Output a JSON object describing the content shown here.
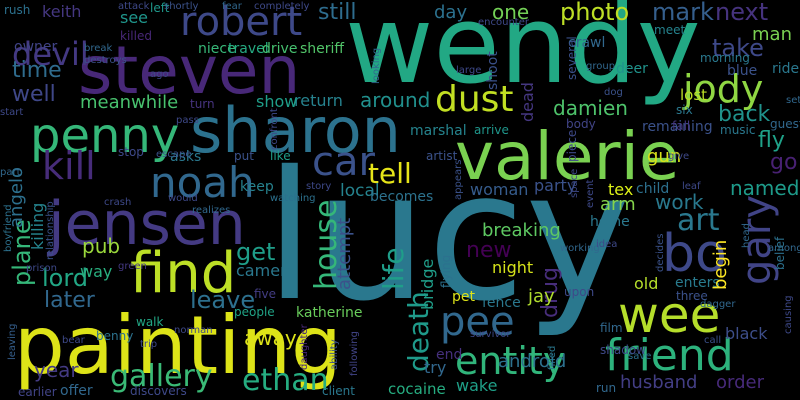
{
  "words": [
    {
      "text": "lucy",
      "color": "#2a788e"
    },
    {
      "text": "wendy",
      "color": "#22a884"
    },
    {
      "text": "painting",
      "color": "#dde318"
    },
    {
      "text": "steven",
      "color": "#482878"
    },
    {
      "text": "sharon",
      "color": "#2c728e"
    },
    {
      "text": "valerie",
      "color": "#7ad151"
    },
    {
      "text": "jensen",
      "color": "#443a83"
    },
    {
      "text": "penny",
      "color": "#35b779"
    },
    {
      "text": "find",
      "color": "#bddf26"
    },
    {
      "text": "friend",
      "color": "#2db27d"
    },
    {
      "text": "bo",
      "color": "#3e4989"
    },
    {
      "text": "wee",
      "color": "#b5de2b"
    },
    {
      "text": "gary",
      "color": "#414487"
    },
    {
      "text": "noah",
      "color": "#31688e"
    },
    {
      "text": "car",
      "color": "#3b528b"
    },
    {
      "text": "robert",
      "color": "#3e4989"
    },
    {
      "text": "kill",
      "color": "#472c7a"
    },
    {
      "text": "pee",
      "color": "#31688e"
    },
    {
      "text": "entity",
      "color": "#31b57b"
    },
    {
      "text": "dust",
      "color": "#c2df23"
    },
    {
      "text": "jody",
      "color": "#90d743"
    },
    {
      "text": "devil",
      "color": "#443983"
    },
    {
      "text": "gallery",
      "color": "#3aba76"
    },
    {
      "text": "ethan",
      "color": "#26ad81"
    },
    {
      "text": "house",
      "color": "#35b779"
    },
    {
      "text": "life",
      "color": "#1f9e89"
    },
    {
      "text": "death",
      "color": "#1f9a8a"
    },
    {
      "text": "art",
      "color": "#2a788e"
    },
    {
      "text": "tell",
      "color": "#e5e419"
    },
    {
      "text": "get",
      "color": "#1f9e89"
    },
    {
      "text": "lord",
      "color": "#22a785"
    },
    {
      "text": "later",
      "color": "#31688e"
    },
    {
      "text": "leave",
      "color": "#2d708e"
    },
    {
      "text": "time",
      "color": "#2f6c8e"
    },
    {
      "text": "well",
      "color": "#3f4788"
    },
    {
      "text": "plane",
      "color": "#35b779"
    },
    {
      "text": "take",
      "color": "#3e4989"
    },
    {
      "text": "mark",
      "color": "#355f8d"
    },
    {
      "text": "next",
      "color": "#46337e"
    },
    {
      "text": "fly",
      "color": "#1fa188"
    },
    {
      "text": "go",
      "color": "#482173"
    },
    {
      "text": "back",
      "color": "#20928c"
    },
    {
      "text": "named",
      "color": "#1e9b8a"
    },
    {
      "text": "work",
      "color": "#29798e"
    },
    {
      "text": "new",
      "color": "#440154"
    },
    {
      "text": "drug",
      "color": "#472d7b"
    },
    {
      "text": "photo",
      "color": "#bddf26"
    },
    {
      "text": "day",
      "color": "#2c718e"
    },
    {
      "text": "one",
      "color": "#73d056"
    },
    {
      "text": "still",
      "color": "#2e6d8e"
    },
    {
      "text": "around",
      "color": "#21908d"
    },
    {
      "text": "damien",
      "color": "#4ec36b"
    },
    {
      "text": "meanwhile",
      "color": "#48c16e"
    },
    {
      "text": "attempt",
      "color": "#3b528b"
    },
    {
      "text": "local",
      "color": "#25838e"
    },
    {
      "text": "return",
      "color": "#26828e"
    },
    {
      "text": "show",
      "color": "#1f9e89"
    },
    {
      "text": "breaking",
      "color": "#5ec962"
    },
    {
      "text": "night",
      "color": "#d5e21a"
    },
    {
      "text": "jay",
      "color": "#b0dd2f"
    },
    {
      "text": "android",
      "color": "#2c718e"
    },
    {
      "text": "husband",
      "color": "#433e85"
    },
    {
      "text": "order",
      "color": "#472a7a"
    },
    {
      "text": "black",
      "color": "#3d4e8a"
    },
    {
      "text": "wake",
      "color": "#1fa088"
    },
    {
      "text": "cocaine",
      "color": "#26ad81"
    },
    {
      "text": "try",
      "color": "#31688e"
    },
    {
      "text": "end",
      "color": "#46307e"
    },
    {
      "text": "pub",
      "color": "#9bd93c"
    },
    {
      "text": "angelo",
      "color": "#2d708e"
    },
    {
      "text": "killing",
      "color": "#25848e"
    },
    {
      "text": "way",
      "color": "#29af7f"
    },
    {
      "text": "camera",
      "color": "#2a788e"
    },
    {
      "text": "away",
      "color": "#dde318"
    },
    {
      "text": "katherine",
      "color": "#69cd5b"
    },
    {
      "text": "people",
      "color": "#20a386"
    },
    {
      "text": "year",
      "color": "#443a83"
    },
    {
      "text": "keith",
      "color": "#453781"
    },
    {
      "text": "see",
      "color": "#1f968b"
    },
    {
      "text": "owner",
      "color": "#414487"
    },
    {
      "text": "man",
      "color": "#7ad151"
    },
    {
      "text": "blue",
      "color": "#3b528b"
    },
    {
      "text": "ride",
      "color": "#2a788e"
    },
    {
      "text": "lost",
      "color": "#bddf26"
    },
    {
      "text": "gun",
      "color": "#d8e219"
    },
    {
      "text": "child",
      "color": "#2d708e"
    },
    {
      "text": "tex",
      "color": "#ddf218"
    },
    {
      "text": "woman",
      "color": "#365c8d"
    },
    {
      "text": "party",
      "color": "#3b528b"
    },
    {
      "text": "arm",
      "color": "#84d44b"
    },
    {
      "text": "home",
      "color": "#2a788e"
    },
    {
      "text": "pet",
      "color": "#dde318"
    },
    {
      "text": "fence",
      "color": "#2a788e"
    },
    {
      "text": "old",
      "color": "#b5de2b"
    },
    {
      "text": "enters",
      "color": "#297b8e"
    },
    {
      "text": "begin",
      "color": "#fde725"
    },
    {
      "text": "remaining",
      "color": "#3b528b"
    },
    {
      "text": "bridge",
      "color": "#1f9e89"
    },
    {
      "text": "dead",
      "color": "#453781"
    },
    {
      "text": "marshal",
      "color": "#25848e"
    },
    {
      "text": "arrive",
      "color": "#1f968b"
    },
    {
      "text": "shoot",
      "color": "#3b528b"
    },
    {
      "text": "keep",
      "color": "#26828e"
    },
    {
      "text": "becomes",
      "color": "#2c728e"
    },
    {
      "text": "asks",
      "color": "#2a788e"
    },
    {
      "text": "stop",
      "color": "#3e4989"
    },
    {
      "text": "five",
      "color": "#433d84"
    },
    {
      "text": "walk",
      "color": "#22a785"
    },
    {
      "text": "benny",
      "color": "#2c728e"
    },
    {
      "text": "left",
      "color": "#1f988b"
    },
    {
      "text": "killed",
      "color": "#482878"
    },
    {
      "text": "niece",
      "color": "#37b878"
    },
    {
      "text": "travel",
      "color": "#25ab82"
    },
    {
      "text": "drive",
      "color": "#46c06f"
    },
    {
      "text": "sheriff",
      "color": "#52c569"
    },
    {
      "text": "turn",
      "color": "#46337e"
    },
    {
      "text": "deer",
      "color": "#20938c"
    },
    {
      "text": "morning",
      "color": "#2a788e"
    },
    {
      "text": "meet",
      "color": "#25838e"
    },
    {
      "text": "crawl",
      "color": "#31688e"
    },
    {
      "text": "several",
      "color": "#3b528b"
    },
    {
      "text": "six",
      "color": "#2a788e"
    },
    {
      "text": "fall",
      "color": "#453781"
    },
    {
      "text": "music",
      "color": "#2a788e"
    },
    {
      "text": "guest",
      "color": "#31688e"
    },
    {
      "text": "body",
      "color": "#414487"
    },
    {
      "text": "artist",
      "color": "#3b528b"
    },
    {
      "text": "piece",
      "color": "#3e4989"
    },
    {
      "text": "like",
      "color": "#1f9e89"
    },
    {
      "text": "put",
      "color": "#3b528b"
    },
    {
      "text": "story",
      "color": "#3e4989"
    },
    {
      "text": "watching",
      "color": "#2c718e"
    },
    {
      "text": "would",
      "color": "#3e4989"
    },
    {
      "text": "realizes",
      "color": "#31688e"
    },
    {
      "text": "crash",
      "color": "#3e4989"
    },
    {
      "text": "green",
      "color": "#443983"
    },
    {
      "text": "prison",
      "color": "#3e4989"
    },
    {
      "text": "leaving",
      "color": "#355f8d"
    },
    {
      "text": "earlier",
      "color": "#414487"
    },
    {
      "text": "offer",
      "color": "#31688e"
    },
    {
      "text": "discovers",
      "color": "#3e4989"
    },
    {
      "text": "client",
      "color": "#2a788e"
    },
    {
      "text": "trip",
      "color": "#3e4989"
    },
    {
      "text": "daughter",
      "color": "#482878"
    },
    {
      "text": "ability",
      "color": "#3b528b"
    },
    {
      "text": "following",
      "color": "#414487"
    },
    {
      "text": "survivor",
      "color": "#3e4989"
    },
    {
      "text": "filled",
      "color": "#2a788e"
    },
    {
      "text": "shadow",
      "color": "#3e4989"
    },
    {
      "text": "save",
      "color": "#2c718e"
    },
    {
      "text": "run",
      "color": "#31688e"
    },
    {
      "text": "film",
      "color": "#31688e"
    },
    {
      "text": "upon",
      "color": "#3e4989"
    },
    {
      "text": "three",
      "color": "#3b528b"
    },
    {
      "text": "flying",
      "color": "#2c718e"
    },
    {
      "text": "working",
      "color": "#31688e"
    },
    {
      "text": "idea",
      "color": "#3e4989"
    },
    {
      "text": "decides",
      "color": "#3b528b"
    },
    {
      "text": "among",
      "color": "#31688e"
    },
    {
      "text": "belief",
      "color": "#2c718e"
    },
    {
      "text": "causing",
      "color": "#3e4989"
    },
    {
      "text": "call",
      "color": "#3b528b"
    },
    {
      "text": "head",
      "color": "#31688e"
    },
    {
      "text": "give",
      "color": "#3e4989"
    },
    {
      "text": "rush",
      "color": "#2c718e"
    },
    {
      "text": "attack",
      "color": "#3e4989"
    },
    {
      "text": "shortly",
      "color": "#3b528b"
    },
    {
      "text": "fear",
      "color": "#31688e"
    },
    {
      "text": "completely",
      "color": "#3e4989"
    },
    {
      "text": "encounter",
      "color": "#3e4989"
    },
    {
      "text": "break",
      "color": "#31688e"
    },
    {
      "text": "destroys",
      "color": "#3b528b"
    },
    {
      "text": "ago",
      "color": "#3e4989"
    },
    {
      "text": "looking",
      "color": "#31688e"
    },
    {
      "text": "large",
      "color": "#3e4989"
    },
    {
      "text": "group",
      "color": "#31688e"
    },
    {
      "text": "dog",
      "color": "#3b528b"
    },
    {
      "text": "start",
      "color": "#3e4989"
    },
    {
      "text": "part",
      "color": "#31688e"
    },
    {
      "text": "boyfriend",
      "color": "#2c718e"
    },
    {
      "text": "relationship",
      "color": "#3b528b"
    },
    {
      "text": "norman",
      "color": "#3e4989"
    },
    {
      "text": "bear",
      "color": "#3e4989"
    },
    {
      "text": "escape",
      "color": "#3b528b"
    },
    {
      "text": "space",
      "color": "#3e4989"
    },
    {
      "text": "event",
      "color": "#3e4989"
    },
    {
      "text": "dagger",
      "color": "#31688e"
    },
    {
      "text": "leaf",
      "color": "#3e4989"
    },
    {
      "text": "set",
      "color": "#31688e"
    },
    {
      "text": "appears",
      "color": "#3b528b"
    },
    {
      "text": "confront",
      "color": "#3e4989"
    },
    {
      "text": "pass",
      "color": "#3e4989"
    }
  ]
}
